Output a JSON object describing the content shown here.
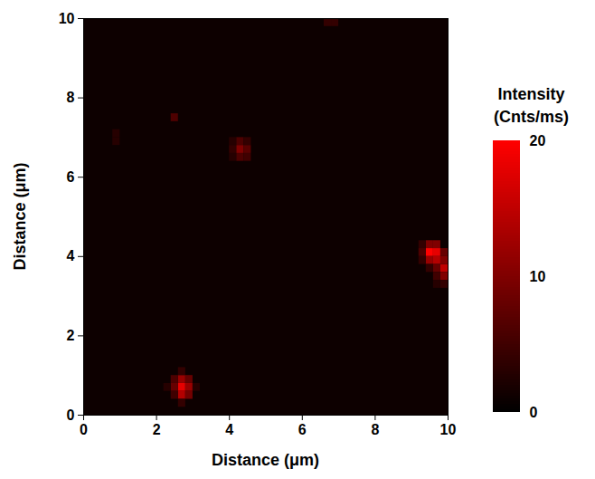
{
  "chart_data": {
    "type": "heatmap",
    "xlabel": "Distance (μm)",
    "ylabel": "Distance (μm)",
    "xlim": [
      0,
      10
    ],
    "ylim": [
      0,
      10
    ],
    "xticks": [
      0,
      2,
      4,
      6,
      8,
      10
    ],
    "yticks": [
      0,
      2,
      4,
      6,
      8,
      10
    ],
    "cell_size": 0.2,
    "background": 1,
    "cells": [
      [
        2.6,
        0.6,
        18
      ],
      [
        2.6,
        0.4,
        14
      ],
      [
        2.8,
        0.6,
        12
      ],
      [
        2.4,
        0.6,
        8
      ],
      [
        2.6,
        0.8,
        12
      ],
      [
        2.8,
        0.4,
        9
      ],
      [
        2.4,
        0.4,
        5
      ],
      [
        2.4,
        0.8,
        6
      ],
      [
        2.8,
        0.8,
        8
      ],
      [
        2.6,
        0.2,
        4
      ],
      [
        2.6,
        1.0,
        4
      ],
      [
        2.2,
        0.6,
        3
      ],
      [
        3.0,
        0.6,
        3
      ],
      [
        4.2,
        6.6,
        10
      ],
      [
        4.4,
        6.6,
        7
      ],
      [
        4.2,
        6.4,
        6
      ],
      [
        4.2,
        6.8,
        6
      ],
      [
        4.0,
        6.6,
        4
      ],
      [
        4.4,
        6.4,
        5
      ],
      [
        4.4,
        6.8,
        4
      ],
      [
        4.0,
        6.4,
        3
      ],
      [
        4.0,
        6.8,
        3
      ],
      [
        9.4,
        4.0,
        20
      ],
      [
        9.6,
        4.0,
        18
      ],
      [
        9.4,
        3.8,
        12
      ],
      [
        9.6,
        3.8,
        14
      ],
      [
        9.4,
        4.2,
        10
      ],
      [
        9.6,
        4.2,
        10
      ],
      [
        9.2,
        4.0,
        6
      ],
      [
        9.2,
        3.8,
        4
      ],
      [
        9.2,
        4.2,
        4
      ],
      [
        9.8,
        4.0,
        8
      ],
      [
        9.8,
        3.6,
        15
      ],
      [
        9.8,
        3.4,
        10
      ],
      [
        9.6,
        3.6,
        8
      ],
      [
        9.8,
        3.8,
        10
      ],
      [
        9.6,
        3.4,
        5
      ],
      [
        9.4,
        3.6,
        4
      ],
      [
        9.6,
        3.2,
        3
      ],
      [
        9.8,
        3.2,
        4
      ],
      [
        2.4,
        7.4,
        6
      ],
      [
        6.6,
        9.8,
        4
      ],
      [
        6.8,
        9.8,
        4
      ],
      [
        0.8,
        7.0,
        3
      ],
      [
        0.8,
        6.8,
        3
      ]
    ],
    "colorbar": {
      "label": "Intensity (Cnts/ms)",
      "range": [
        0,
        20
      ],
      "ticks": [
        0,
        10,
        20
      ],
      "colors": [
        "#000000",
        "#ff0000"
      ]
    }
  }
}
